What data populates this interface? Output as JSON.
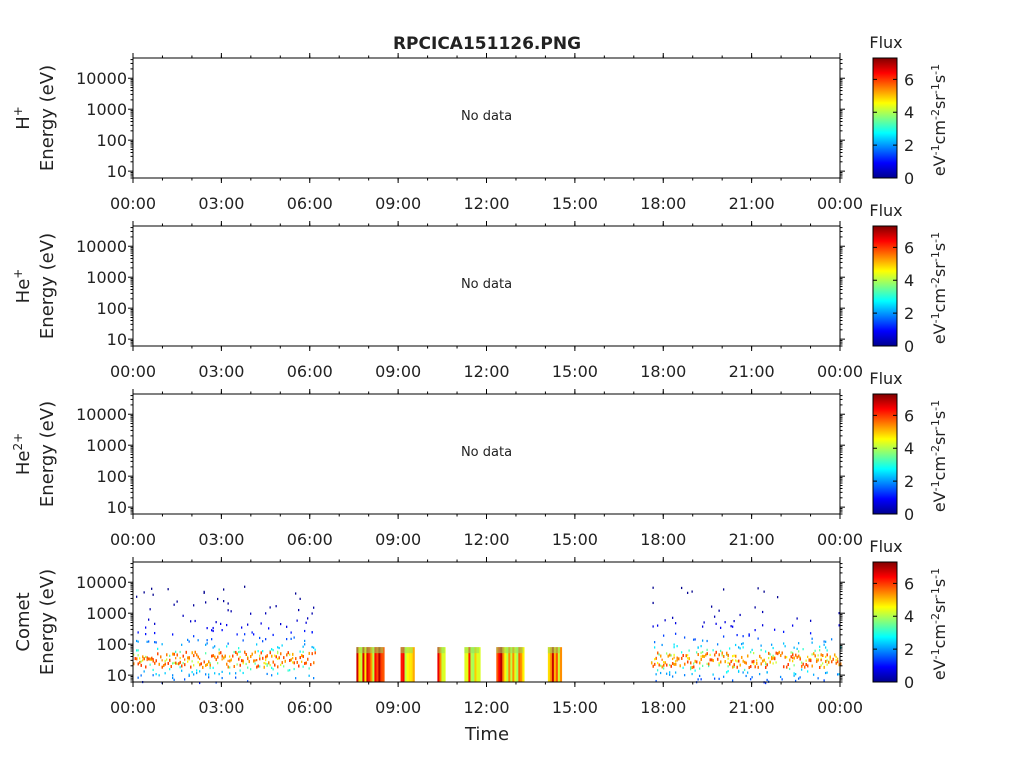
{
  "title": "RPCICA151126.PNG",
  "xlabel": "Time",
  "colorbar": {
    "title": "Flux",
    "ticks": [
      "0",
      "2",
      "4",
      "6"
    ],
    "range": [
      0,
      7.3
    ],
    "unit_parts": [
      "eV",
      "-1",
      "cm",
      "-2",
      "sr",
      "-1",
      "s",
      "-1"
    ]
  },
  "no_data_text": "No data",
  "chart_data": [
    {
      "type": "heatmap",
      "species": "H",
      "species_sup": "+",
      "ylabel": "Energy (eV)",
      "ylim": [
        6,
        45000
      ],
      "yscale": "log",
      "yticks": [
        {
          "v": 10,
          "l": "10"
        },
        {
          "v": 100,
          "l": "100"
        },
        {
          "v": 1000,
          "l": "1000"
        },
        {
          "v": 10000,
          "l": "10000"
        }
      ],
      "xlim": [
        "00:00",
        "24:00"
      ],
      "xticks": [
        "00:00",
        "03:00",
        "06:00",
        "09:00",
        "12:00",
        "15:00",
        "18:00",
        "21:00",
        "00:00"
      ],
      "has_data": false,
      "segments": []
    },
    {
      "type": "heatmap",
      "species": "He",
      "species_sup": "+",
      "ylabel": "Energy (eV)",
      "ylim": [
        6,
        45000
      ],
      "yscale": "log",
      "yticks": [
        {
          "v": 10,
          "l": "10"
        },
        {
          "v": 100,
          "l": "100"
        },
        {
          "v": 1000,
          "l": "1000"
        },
        {
          "v": 10000,
          "l": "10000"
        }
      ],
      "xlim": [
        "00:00",
        "24:00"
      ],
      "xticks": [
        "00:00",
        "03:00",
        "06:00",
        "09:00",
        "12:00",
        "15:00",
        "18:00",
        "21:00",
        "00:00"
      ],
      "has_data": false,
      "segments": []
    },
    {
      "type": "heatmap",
      "species": "He",
      "species_sup": "2+",
      "ylabel": "Energy (eV)",
      "ylim": [
        6,
        45000
      ],
      "yscale": "log",
      "yticks": [
        {
          "v": 10,
          "l": "10"
        },
        {
          "v": 100,
          "l": "100"
        },
        {
          "v": 1000,
          "l": "1000"
        },
        {
          "v": 10000,
          "l": "10000"
        }
      ],
      "xlim": [
        "00:00",
        "24:00"
      ],
      "xticks": [
        "00:00",
        "03:00",
        "06:00",
        "09:00",
        "12:00",
        "15:00",
        "18:00",
        "21:00",
        "00:00"
      ],
      "has_data": false,
      "segments": []
    },
    {
      "type": "heatmap",
      "species": "Comet",
      "species_sup": "",
      "ylabel": "Energy (eV)",
      "ylim": [
        6,
        45000
      ],
      "yscale": "log",
      "yticks": [
        {
          "v": 10,
          "l": "10"
        },
        {
          "v": 100,
          "l": "100"
        },
        {
          "v": 1000,
          "l": "1000"
        },
        {
          "v": 10000,
          "l": "10000"
        }
      ],
      "xlim": [
        "00:00",
        "24:00"
      ],
      "xticks": [
        "00:00",
        "03:00",
        "06:00",
        "09:00",
        "12:00",
        "15:00",
        "18:00",
        "21:00",
        "00:00"
      ],
      "has_data": true,
      "segments": [
        {
          "start": "00:00",
          "end": "06:10",
          "mode": "survey",
          "emax": 9000,
          "peak_energy": 35,
          "peak_flux": 6.0
        },
        {
          "start": "07:35",
          "end": "08:30",
          "mode": "burst",
          "emax": 80,
          "peak_energy": 15,
          "peak_flux": 7.0
        },
        {
          "start": "09:05",
          "end": "09:30",
          "mode": "burst",
          "emax": 80,
          "peak_energy": 15,
          "peak_flux": 7.0
        },
        {
          "start": "10:20",
          "end": "10:35",
          "mode": "burst",
          "emax": 80,
          "peak_energy": 15,
          "peak_flux": 7.0
        },
        {
          "start": "11:15",
          "end": "11:45",
          "mode": "burst",
          "emax": 80,
          "peak_energy": 15,
          "peak_flux": 7.0
        },
        {
          "start": "12:20",
          "end": "13:15",
          "mode": "burst",
          "emax": 80,
          "peak_energy": 15,
          "peak_flux": 7.0
        },
        {
          "start": "14:05",
          "end": "14:30",
          "mode": "burst",
          "emax": 80,
          "peak_energy": 15,
          "peak_flux": 7.0
        },
        {
          "start": "17:35",
          "end": "24:00",
          "mode": "survey",
          "emax": 9000,
          "peak_energy": 35,
          "peak_flux": 6.0
        }
      ]
    }
  ]
}
